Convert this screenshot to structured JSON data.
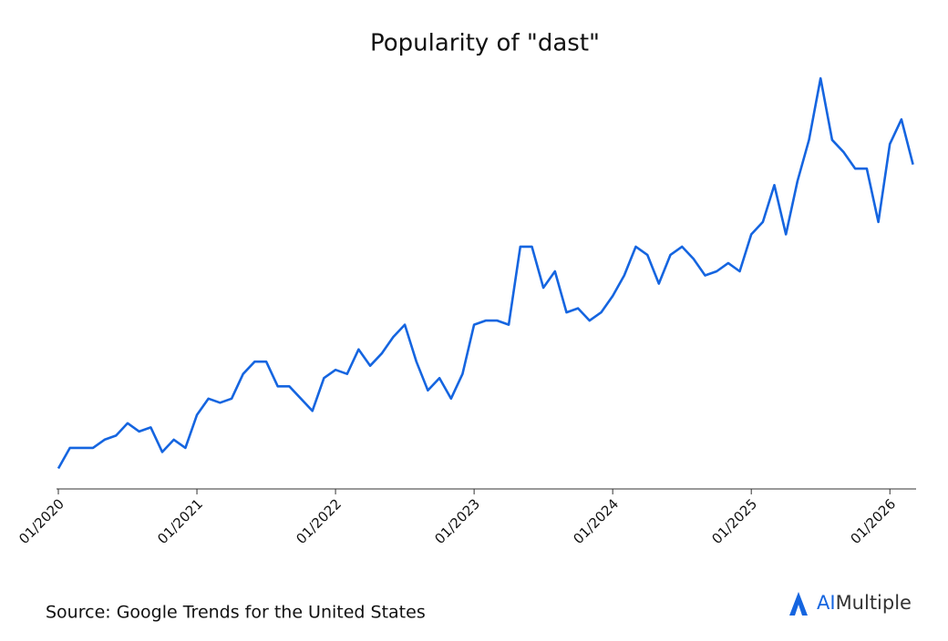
{
  "chart_data": {
    "type": "line",
    "title": "Popularity of \"dast\"",
    "x": [
      "01/2020",
      "02/2020",
      "03/2020",
      "04/2020",
      "05/2020",
      "06/2020",
      "07/2020",
      "08/2020",
      "09/2020",
      "10/2020",
      "11/2020",
      "12/2020",
      "01/2021",
      "02/2021",
      "03/2021",
      "04/2021",
      "05/2021",
      "06/2021",
      "07/2021",
      "08/2021",
      "09/2021",
      "10/2021",
      "11/2021",
      "12/2021",
      "01/2022",
      "02/2022",
      "03/2022",
      "04/2022",
      "05/2022",
      "06/2022",
      "07/2022",
      "08/2022",
      "09/2022",
      "10/2022",
      "11/2022",
      "12/2022",
      "01/2023",
      "02/2023",
      "03/2023",
      "04/2023",
      "05/2023",
      "06/2023",
      "07/2023",
      "08/2023",
      "09/2023",
      "10/2023",
      "11/2023",
      "12/2023",
      "01/2024",
      "02/2024",
      "03/2024",
      "04/2024",
      "05/2024",
      "06/2024",
      "07/2024",
      "08/2024",
      "09/2024",
      "10/2024",
      "11/2024",
      "12/2024",
      "01/2025",
      "02/2025",
      "03/2025",
      "04/2025",
      "05/2025",
      "06/2025",
      "07/2025",
      "08/2025",
      "09/2025",
      "10/2025",
      "11/2025",
      "12/2025",
      "01/2026",
      "02/2026",
      "03/2026"
    ],
    "series": [
      {
        "color": "#1565e0",
        "values": [
          5,
          10,
          10,
          10,
          12,
          13,
          16,
          14,
          15,
          9,
          12,
          10,
          18,
          22,
          21,
          22,
          28,
          31,
          31,
          25,
          25,
          22,
          19,
          27,
          29,
          28,
          34,
          30,
          33,
          37,
          40,
          31,
          24,
          27,
          22,
          28,
          40,
          41,
          41,
          40,
          59,
          59,
          49,
          53,
          43,
          44,
          41,
          43,
          47,
          52,
          59,
          57,
          50,
          57,
          59,
          56,
          52,
          53,
          55,
          53,
          62,
          65,
          74,
          62,
          75,
          85,
          100,
          85,
          82,
          78,
          78,
          65,
          84,
          90,
          79
        ]
      }
    ],
    "ylim": [
      0,
      100
    ],
    "xticks": [
      "01/2020",
      "01/2021",
      "01/2022",
      "01/2023",
      "01/2024",
      "01/2025",
      "01/2026"
    ],
    "source": "Source: Google Trends for the United States"
  },
  "logo": {
    "ai": "AI",
    "rest": "Multiple"
  }
}
